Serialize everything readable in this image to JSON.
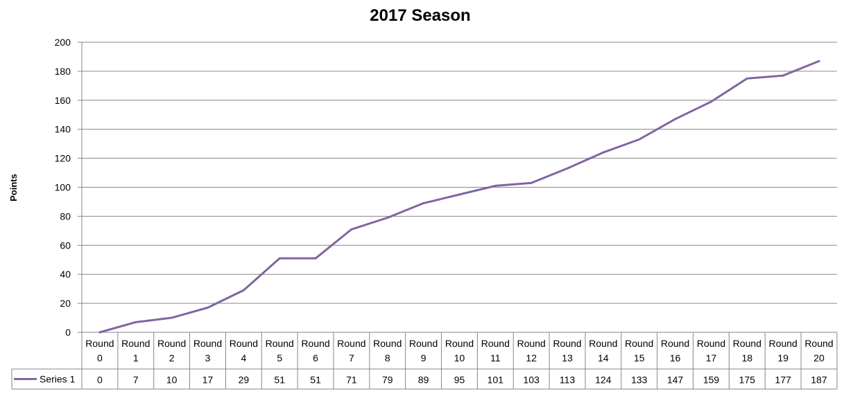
{
  "chart_data": {
    "type": "line",
    "title": "2017 Season",
    "xlabel": "",
    "ylabel": "Points",
    "ylim": [
      0,
      200
    ],
    "yticks": [
      0,
      20,
      40,
      60,
      80,
      100,
      120,
      140,
      160,
      180,
      200
    ],
    "grid": true,
    "legend_placement": "in data table, left",
    "categories": [
      "Round 0",
      "Round 1",
      "Round 2",
      "Round 3",
      "Round 4",
      "Round 5",
      "Round 6",
      "Round 7",
      "Round 8",
      "Round 9",
      "Round 10",
      "Round 11",
      "Round 12",
      "Round 13",
      "Round 14",
      "Round 15",
      "Round 16",
      "Round 17",
      "Round 18",
      "Round 19",
      "Round 20"
    ],
    "series": [
      {
        "name": "Series 1",
        "color": "#8064A2",
        "values": [
          0,
          7,
          10,
          17,
          29,
          51,
          51,
          71,
          79,
          89,
          95,
          101,
          103,
          113,
          124,
          133,
          147,
          159,
          175,
          177,
          187
        ]
      }
    ]
  }
}
